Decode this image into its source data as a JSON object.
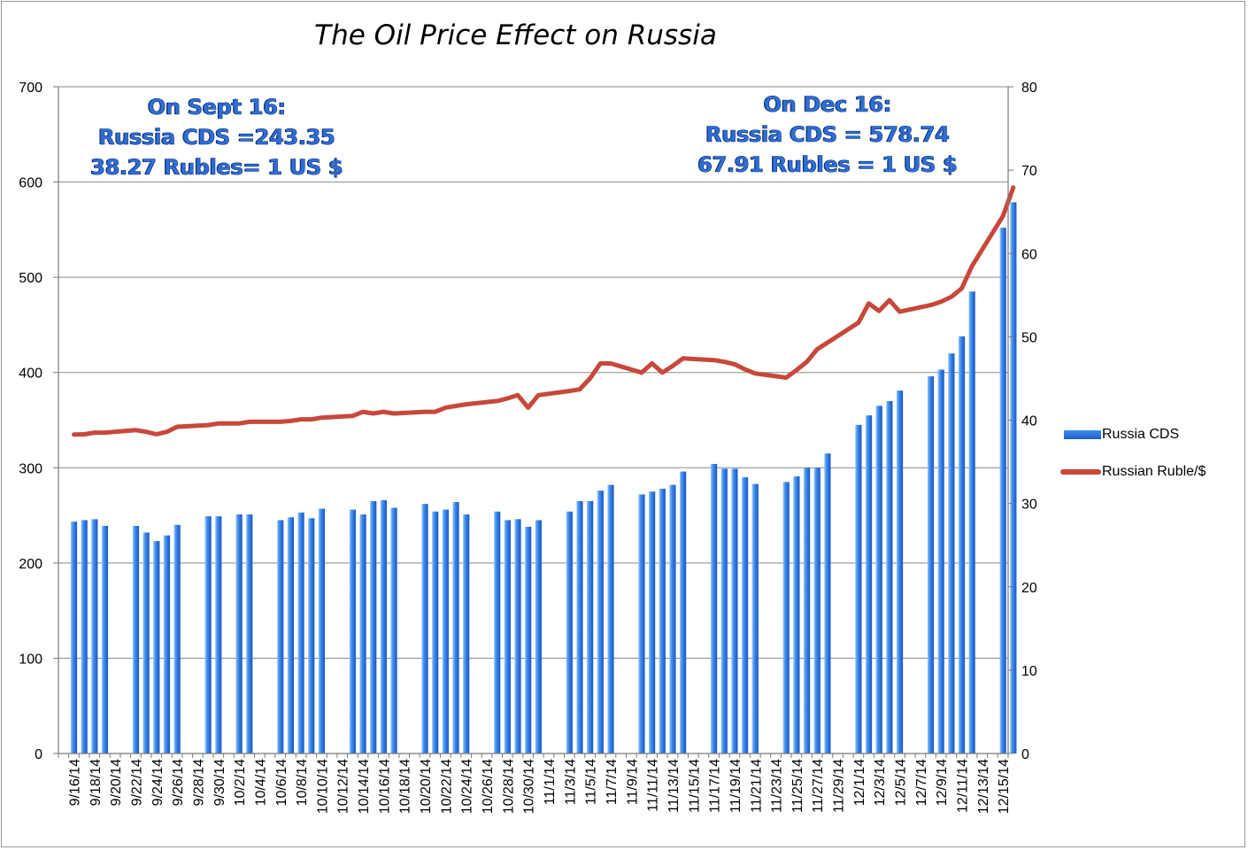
{
  "chart_data": {
    "type": "bar+line",
    "title": "The Oil Price Effect on Russia",
    "annotations": [
      {
        "lines": [
          "On Sept 16:",
          "Russia CDS =243.35",
          "38.27 Rubles= 1 US $"
        ],
        "anchor": "top-left"
      },
      {
        "lines": [
          "On Dec 16:",
          "Russia CDS = 578.74",
          "67.91 Rubles = 1 US $"
        ],
        "anchor": "top-right"
      }
    ],
    "left_axis": {
      "min": 0,
      "max": 700,
      "step": 100,
      "ticks": [
        "0",
        "100",
        "200",
        "300",
        "400",
        "500",
        "600",
        "700"
      ]
    },
    "right_axis": {
      "min": 0,
      "max": 80,
      "step": 10,
      "ticks": [
        "0",
        "10",
        "20",
        "30",
        "40",
        "50",
        "60",
        "70",
        "80"
      ]
    },
    "gridlines": true,
    "legend_position": "right",
    "x_tick_labels": [
      "9/16/14",
      "9/18/14",
      "9/20/14",
      "9/22/14",
      "9/24/14",
      "9/26/14",
      "9/28/14",
      "9/30/14",
      "10/2/14",
      "10/4/14",
      "10/6/14",
      "10/8/14",
      "10/10/14",
      "10/12/14",
      "10/14/14",
      "10/16/14",
      "10/18/14",
      "10/20/14",
      "10/22/14",
      "10/24/14",
      "10/26/14",
      "10/28/14",
      "10/30/14",
      "11/1/14",
      "11/3/14",
      "11/5/14",
      "11/7/14",
      "11/9/14",
      "11/11/14",
      "11/13/14",
      "11/15/14",
      "11/17/14",
      "11/19/14",
      "11/21/14",
      "11/23/14",
      "11/25/14",
      "11/27/14",
      "11/29/14",
      "12/1/14",
      "12/3/14",
      "12/5/14",
      "12/7/14",
      "12/9/14",
      "12/11/14",
      "12/13/14",
      "12/15/14"
    ],
    "series": [
      {
        "name": "Russia CDS",
        "kind": "bar",
        "axis": "left",
        "color": "#2f7ae6",
        "points": [
          [
            "9/16/14",
            243.35
          ],
          [
            "9/17/14",
            245
          ],
          [
            "9/18/14",
            246
          ],
          [
            "9/19/14",
            239
          ],
          [
            "9/22/14",
            239
          ],
          [
            "9/23/14",
            232
          ],
          [
            "9/24/14",
            223
          ],
          [
            "9/25/14",
            229
          ],
          [
            "9/26/14",
            240
          ],
          [
            "9/29/14",
            249
          ],
          [
            "9/30/14",
            249
          ],
          [
            "10/2/14",
            251
          ],
          [
            "10/3/14",
            251
          ],
          [
            "10/6/14",
            245
          ],
          [
            "10/7/14",
            248
          ],
          [
            "10/8/14",
            253
          ],
          [
            "10/9/14",
            247
          ],
          [
            "10/10/14",
            257
          ],
          [
            "10/13/14",
            256
          ],
          [
            "10/14/14",
            251
          ],
          [
            "10/15/14",
            265
          ],
          [
            "10/16/14",
            266
          ],
          [
            "10/17/14",
            258
          ],
          [
            "10/20/14",
            262
          ],
          [
            "10/21/14",
            254
          ],
          [
            "10/22/14",
            256
          ],
          [
            "10/23/14",
            264
          ],
          [
            "10/24/14",
            251
          ],
          [
            "10/27/14",
            254
          ],
          [
            "10/28/14",
            245
          ],
          [
            "10/29/14",
            246
          ],
          [
            "10/30/14",
            238
          ],
          [
            "10/31/14",
            245
          ],
          [
            "11/3/14",
            254
          ],
          [
            "11/4/14",
            265
          ],
          [
            "11/5/14",
            265
          ],
          [
            "11/6/14",
            276
          ],
          [
            "11/7/14",
            282
          ],
          [
            "11/10/14",
            272
          ],
          [
            "11/11/14",
            275
          ],
          [
            "11/12/14",
            278
          ],
          [
            "11/13/14",
            282
          ],
          [
            "11/14/14",
            296
          ],
          [
            "11/17/14",
            304
          ],
          [
            "11/18/14",
            299
          ],
          [
            "11/19/14",
            299
          ],
          [
            "11/20/14",
            290
          ],
          [
            "11/21/14",
            283
          ],
          [
            "11/24/14",
            285
          ],
          [
            "11/25/14",
            291
          ],
          [
            "11/26/14",
            300
          ],
          [
            "11/27/14",
            300
          ],
          [
            "11/28/14",
            315
          ],
          [
            "12/1/14",
            345
          ],
          [
            "12/2/14",
            355
          ],
          [
            "12/3/14",
            365
          ],
          [
            "12/4/14",
            370
          ],
          [
            "12/5/14",
            381
          ],
          [
            "12/8/14",
            396
          ],
          [
            "12/9/14",
            403
          ],
          [
            "12/10/14",
            420
          ],
          [
            "12/11/14",
            438
          ],
          [
            "12/12/14",
            485
          ],
          [
            "12/15/14",
            552
          ],
          [
            "12/16/14",
            578.74
          ]
        ]
      },
      {
        "name": "Russian Ruble/$",
        "kind": "line",
        "axis": "right",
        "color": "#c8473b",
        "points": [
          [
            "9/16/14",
            38.27
          ],
          [
            "9/17/14",
            38.3
          ],
          [
            "9/18/14",
            38.5
          ],
          [
            "9/19/14",
            38.5
          ],
          [
            "9/22/14",
            38.8
          ],
          [
            "9/23/14",
            38.6
          ],
          [
            "9/24/14",
            38.3
          ],
          [
            "9/25/14",
            38.6
          ],
          [
            "9/26/14",
            39.2
          ],
          [
            "9/29/14",
            39.4
          ],
          [
            "9/30/14",
            39.6
          ],
          [
            "10/2/14",
            39.6
          ],
          [
            "10/3/14",
            39.8
          ],
          [
            "10/6/14",
            39.8
          ],
          [
            "10/7/14",
            39.9
          ],
          [
            "10/8/14",
            40.1
          ],
          [
            "10/9/14",
            40.1
          ],
          [
            "10/10/14",
            40.3
          ],
          [
            "10/13/14",
            40.5
          ],
          [
            "10/14/14",
            41.0
          ],
          [
            "10/15/14",
            40.8
          ],
          [
            "10/16/14",
            41.0
          ],
          [
            "10/17/14",
            40.8
          ],
          [
            "10/20/14",
            41.0
          ],
          [
            "10/21/14",
            41.0
          ],
          [
            "10/22/14",
            41.5
          ],
          [
            "10/23/14",
            41.7
          ],
          [
            "10/24/14",
            41.9
          ],
          [
            "10/27/14",
            42.3
          ],
          [
            "10/28/14",
            42.6
          ],
          [
            "10/29/14",
            43.0
          ],
          [
            "10/30/14",
            41.5
          ],
          [
            "10/31/14",
            43.0
          ],
          [
            "11/3/14",
            43.5
          ],
          [
            "11/4/14",
            43.7
          ],
          [
            "11/5/14",
            45.0
          ],
          [
            "11/6/14",
            46.8
          ],
          [
            "11/7/14",
            46.8
          ],
          [
            "11/10/14",
            45.7
          ],
          [
            "11/11/14",
            46.8
          ],
          [
            "11/12/14",
            45.7
          ],
          [
            "11/13/14",
            46.5
          ],
          [
            "11/14/14",
            47.4
          ],
          [
            "11/17/14",
            47.2
          ],
          [
            "11/18/14",
            47.0
          ],
          [
            "11/19/14",
            46.7
          ],
          [
            "11/20/14",
            46.1
          ],
          [
            "11/21/14",
            45.6
          ],
          [
            "11/24/14",
            45.1
          ],
          [
            "11/25/14",
            46.0
          ],
          [
            "11/26/14",
            47.0
          ],
          [
            "11/27/14",
            48.5
          ],
          [
            "11/28/14",
            49.3
          ],
          [
            "12/1/14",
            51.7
          ],
          [
            "12/2/14",
            54.0
          ],
          [
            "12/3/14",
            53.1
          ],
          [
            "12/4/14",
            54.4
          ],
          [
            "12/5/14",
            53.0
          ],
          [
            "12/8/14",
            53.8
          ],
          [
            "12/9/14",
            54.2
          ],
          [
            "12/10/14",
            54.8
          ],
          [
            "12/11/14",
            55.8
          ],
          [
            "12/12/14",
            58.5
          ],
          [
            "12/15/14",
            64.5
          ],
          [
            "12/16/14",
            67.91
          ]
        ]
      }
    ]
  }
}
